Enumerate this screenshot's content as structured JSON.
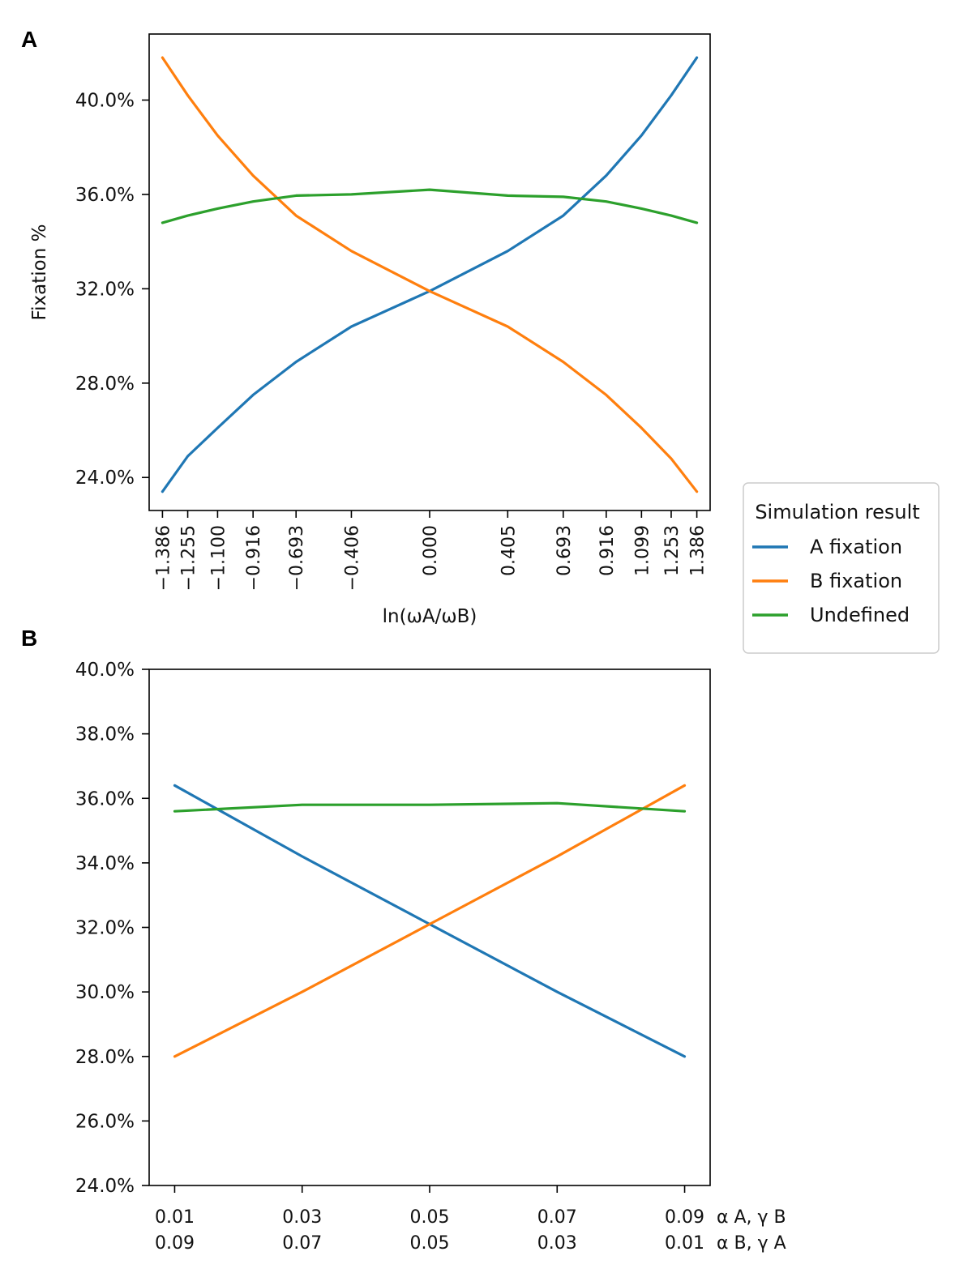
{
  "legend": {
    "title": "Simulation result",
    "entries": [
      {
        "label": "A fixation",
        "color": "#1f77b4"
      },
      {
        "label": "B fixation",
        "color": "#ff7f0e"
      },
      {
        "label": "Undefined",
        "color": "#2ca02c"
      }
    ]
  },
  "chart_data": [
    {
      "panel": "A",
      "type": "line",
      "title": "",
      "xlabel": "ln(ωA/ωB)",
      "ylabel": "Fixation %",
      "x": [
        -1.386,
        -1.255,
        -1.1,
        -0.916,
        -0.693,
        -0.406,
        0.0,
        0.405,
        0.693,
        0.916,
        1.099,
        1.253,
        1.386
      ],
      "xtick_labels": [
        "−1.386",
        "−1.255",
        "−1.100",
        "−0.916",
        "−0.693",
        "−0.406",
        "0.000",
        "0.405",
        "0.693",
        "0.916",
        "1.099",
        "1.253",
        "1.386"
      ],
      "xlim": [
        -1.455,
        1.455
      ],
      "ylim": [
        22.6,
        42.8
      ],
      "yticks": [
        24,
        28,
        32,
        36,
        40
      ],
      "ytick_labels": [
        "24.0%",
        "28.0%",
        "32.0%",
        "36.0%",
        "40.0%"
      ],
      "grid": false,
      "series": [
        {
          "name": "A fixation",
          "color": "#1f77b4",
          "values": [
            23.4,
            24.9,
            26.1,
            27.5,
            28.9,
            30.4,
            31.9,
            33.6,
            35.1,
            36.8,
            38.5,
            40.2,
            41.8
          ]
        },
        {
          "name": "B fixation",
          "color": "#ff7f0e",
          "values": [
            41.8,
            40.2,
            38.5,
            36.8,
            35.1,
            33.6,
            31.9,
            30.4,
            28.9,
            27.5,
            26.1,
            24.8,
            23.4
          ]
        },
        {
          "name": "Undefined",
          "color": "#2ca02c",
          "values": [
            34.8,
            35.1,
            35.4,
            35.7,
            35.95,
            36.0,
            36.2,
            35.95,
            35.9,
            35.7,
            35.4,
            35.1,
            34.8
          ]
        }
      ]
    },
    {
      "panel": "B",
      "type": "line",
      "title": "",
      "xlabel_top": "α A, γ B",
      "xlabel_bottom": "α B, γ A",
      "ylabel": "",
      "x": [
        0.01,
        0.03,
        0.05,
        0.07,
        0.09
      ],
      "xtick_labels_top": [
        "0.01",
        "0.03",
        "0.05",
        "0.07",
        "0.09"
      ],
      "xtick_labels_bottom": [
        "0.09",
        "0.07",
        "0.05",
        "0.03",
        "0.01"
      ],
      "xlim": [
        0.006,
        0.094
      ],
      "ylim": [
        24,
        40
      ],
      "yticks": [
        24,
        26,
        28,
        30,
        32,
        34,
        36,
        38,
        40
      ],
      "ytick_labels": [
        "24.0%",
        "26.0%",
        "28.0%",
        "30.0%",
        "32.0%",
        "34.0%",
        "36.0%",
        "38.0%",
        "40.0%"
      ],
      "grid": false,
      "series": [
        {
          "name": "A fixation",
          "color": "#1f77b4",
          "values": [
            36.4,
            34.2,
            32.1,
            30.0,
            28.0
          ]
        },
        {
          "name": "B fixation",
          "color": "#ff7f0e",
          "values": [
            28.0,
            30.0,
            32.1,
            34.2,
            36.4
          ]
        },
        {
          "name": "Undefined",
          "color": "#2ca02c",
          "values": [
            35.6,
            35.8,
            35.8,
            35.85,
            35.6
          ]
        }
      ]
    }
  ]
}
